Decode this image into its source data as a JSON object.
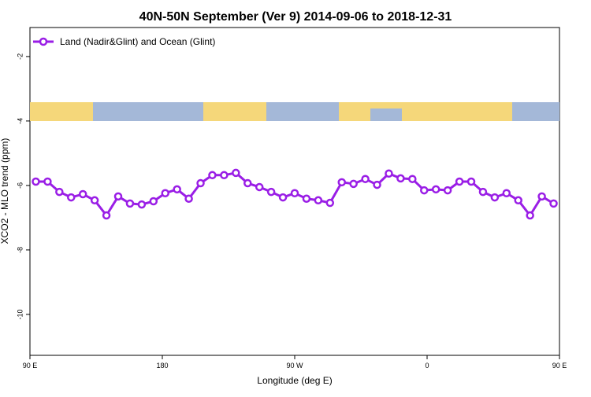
{
  "chart_data": {
    "type": "line",
    "title": "40N-50N September (Ver 9)   2014-09-06 to 2018-12-31",
    "x_label": "Longitude (deg E)",
    "y_label": "XCO2 - MLO trend (ppm)",
    "x": [
      94,
      102,
      110,
      118,
      126,
      134,
      142,
      150,
      158,
      166,
      174,
      182,
      190,
      198,
      206,
      214,
      222,
      230,
      238,
      246,
      254,
      262,
      270,
      278,
      286,
      294,
      302,
      310,
      318,
      326,
      334,
      342,
      350,
      358,
      366,
      374,
      382,
      390,
      398,
      406,
      414,
      422,
      430,
      438,
      446
    ],
    "series": [
      {
        "name": "Land (Nadir&Glint) and Ocean (Glint)",
        "color": "#9a1ee6",
        "values": [
          -5.88,
          -5.88,
          -6.2,
          -6.37,
          -6.27,
          -6.46,
          -6.93,
          -6.34,
          -6.56,
          -6.59,
          -6.49,
          -6.24,
          -6.12,
          -6.41,
          -5.93,
          -5.68,
          -5.68,
          -5.61,
          -5.93,
          -6.05,
          -6.2,
          -6.37,
          -6.24,
          -6.41,
          -6.46,
          -6.54,
          -5.9,
          -5.95,
          -5.8,
          -5.98,
          -5.63,
          -5.78,
          -5.8,
          -6.15,
          -6.12,
          -6.15,
          -5.88,
          -5.88,
          -6.2,
          -6.37,
          -6.24,
          -6.46,
          -6.93,
          -6.34,
          -6.56
        ]
      }
    ],
    "xlim": [
      90,
      450
    ],
    "xticks": [
      {
        "value": 90,
        "label": "90 E"
      },
      {
        "value": 180,
        "label": "180"
      },
      {
        "value": 270,
        "label": "90 W"
      },
      {
        "value": 360,
        "label": "0"
      },
      {
        "value": 450,
        "label": "90 E"
      }
    ],
    "x2ticks_extra": null,
    "ylim": [
      -11.27,
      -1.1
    ],
    "yticks": [
      -2,
      -4,
      -6,
      -8,
      -10
    ],
    "legend": "top-left"
  }
}
